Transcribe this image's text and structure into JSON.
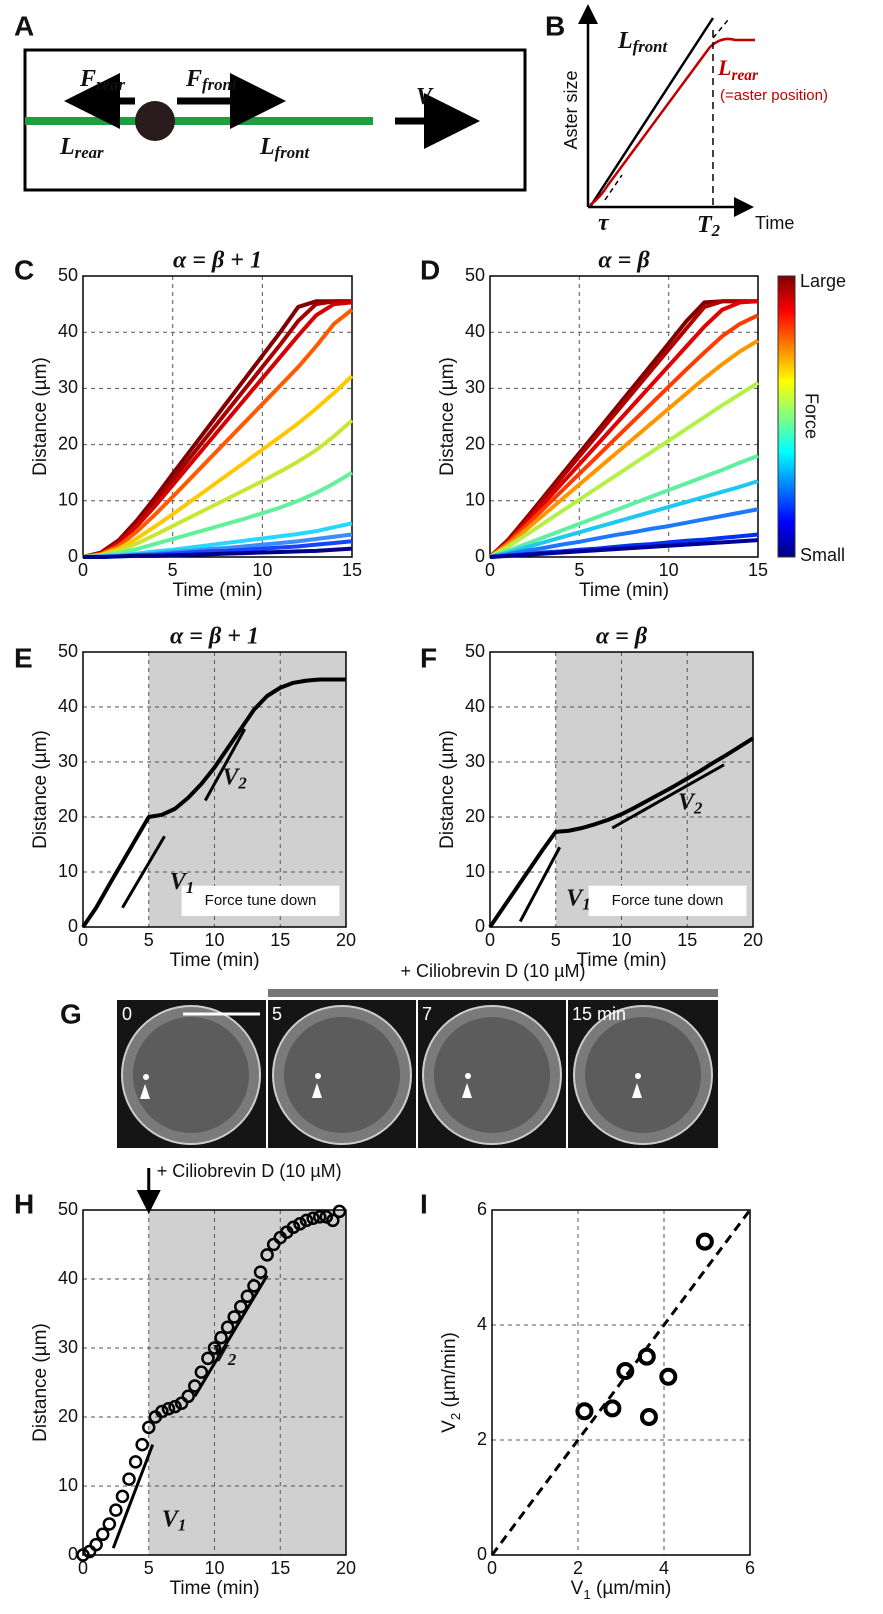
{
  "panel_labels": [
    "A",
    "B",
    "C",
    "D",
    "E",
    "F",
    "G",
    "H",
    "I"
  ],
  "panel_a": {
    "f_rear": [
      "F",
      "rear"
    ],
    "f_front": [
      "F",
      "front"
    ],
    "l_rear": [
      "L",
      "rear"
    ],
    "l_front": [
      "L",
      "front"
    ],
    "velocity": [
      "V"
    ]
  },
  "panel_b": {
    "ylabel": "Aster size",
    "xlabel": "Time",
    "tau": [
      "τ"
    ],
    "t2": [
      "T",
      "2"
    ],
    "l_front": [
      "L",
      "front"
    ],
    "l_rear": [
      "L",
      "rear"
    ],
    "note": "(=aster position)"
  },
  "panel_g": {
    "treatment": "+ Ciliobrevin D (10 µM)",
    "times": [
      "0",
      "5",
      "7",
      "15 min"
    ]
  },
  "chart_data": [
    {
      "type": "line",
      "title": "α = β + 1",
      "xlabel": "Time (min)",
      "ylabel": "Distance (µm)",
      "grid": true,
      "x": [
        0,
        1,
        2,
        3,
        4,
        5,
        6,
        7,
        8,
        9,
        10,
        11,
        12,
        13,
        14,
        15
      ],
      "xlim": [
        0,
        15
      ],
      "ylim": [
        0,
        50
      ],
      "xticks": [
        0,
        5,
        10,
        15
      ],
      "yticks": [
        0,
        10,
        20,
        30,
        40,
        50
      ],
      "series": [
        {
          "color": "#800000",
          "values": [
            0,
            0.8,
            3,
            6.5,
            10.5,
            14.8,
            19,
            23.2,
            27.4,
            31.6,
            35.8,
            40,
            44.5,
            45.5,
            45.5,
            45.5
          ]
        },
        {
          "color": "#a50000",
          "values": [
            0,
            0.7,
            2.7,
            6,
            9.8,
            13.8,
            17.8,
            21.8,
            25.8,
            29.8,
            33.8,
            37.8,
            42,
            45,
            45.5,
            45.5
          ]
        },
        {
          "color": "#d40000",
          "values": [
            0,
            0.6,
            2.5,
            5.5,
            9,
            12.8,
            16.6,
            20.4,
            24.2,
            28,
            31.8,
            35.6,
            39.4,
            43,
            45,
            45.3
          ]
        },
        {
          "color": "#ff5a00",
          "values": [
            0,
            0.5,
            2,
            4.5,
            7.5,
            10.7,
            14,
            17.3,
            20.6,
            23.9,
            27.2,
            30.5,
            33.8,
            37.5,
            41.5,
            44
          ]
        },
        {
          "color": "#ffc800",
          "values": [
            0,
            0.4,
            1.5,
            3.3,
            5.4,
            7.6,
            9.9,
            12.2,
            14.5,
            16.8,
            19.1,
            21.4,
            23.8,
            26.4,
            29.2,
            32.2
          ]
        },
        {
          "color": "#c8e632",
          "values": [
            0,
            0.3,
            1.1,
            2.4,
            3.9,
            5.5,
            7.1,
            8.7,
            10.3,
            11.9,
            13.5,
            15.2,
            17,
            19,
            21.5,
            24.3
          ]
        },
        {
          "color": "#64f09b",
          "values": [
            0,
            0.2,
            0.7,
            1.4,
            2.3,
            3.2,
            4.1,
            5,
            5.9,
            6.8,
            7.8,
            8.8,
            10,
            11.4,
            13.1,
            15
          ]
        },
        {
          "color": "#28d7ff",
          "values": [
            0,
            0.1,
            0.3,
            0.6,
            1,
            1.3,
            1.7,
            2.1,
            2.5,
            2.9,
            3.3,
            3.7,
            4.1,
            4.6,
            5.3,
            6
          ]
        },
        {
          "color": "#3c8cff",
          "values": [
            0,
            0.1,
            0.2,
            0.4,
            0.6,
            0.9,
            1.1,
            1.4,
            1.6,
            1.9,
            2.2,
            2.5,
            2.8,
            3.2,
            3.6,
            4
          ]
        },
        {
          "color": "#1446ff",
          "values": [
            0,
            0,
            0.1,
            0.3,
            0.4,
            0.6,
            0.8,
            1,
            1.1,
            1.3,
            1.5,
            1.7,
            1.9,
            2.2,
            2.5,
            2.8
          ]
        },
        {
          "color": "#00008c",
          "values": [
            0,
            0,
            0.1,
            0.2,
            0.2,
            0.3,
            0.4,
            0.5,
            0.6,
            0.7,
            0.8,
            0.9,
            1,
            1.1,
            1.3,
            1.5
          ]
        }
      ]
    },
    {
      "type": "line",
      "title": "α = β",
      "xlabel": "Time (min)",
      "ylabel": "Distance (µm)",
      "grid": true,
      "x": [
        0,
        1,
        2,
        3,
        4,
        5,
        6,
        7,
        8,
        9,
        10,
        11,
        12,
        13,
        14,
        15
      ],
      "xlim": [
        0,
        15
      ],
      "ylim": [
        0,
        50
      ],
      "xticks": [
        0,
        5,
        10,
        15
      ],
      "yticks": [
        0,
        10,
        20,
        30,
        40,
        50
      ],
      "colorbar": {
        "colors": [
          "#800000",
          "#ff0000",
          "#ff8000",
          "#ffff00",
          "#80ff80",
          "#00ffff",
          "#0080ff",
          "#0000ff",
          "#000080"
        ],
        "labels": [
          "Large",
          "Force",
          "Small"
        ]
      },
      "series": [
        {
          "color": "#800000",
          "values": [
            0,
            3,
            6.8,
            10.7,
            14.6,
            18.5,
            22.4,
            26.3,
            30.2,
            34.1,
            38,
            42,
            45.3,
            45.5,
            45.5,
            45.5
          ]
        },
        {
          "color": "#b00000",
          "values": [
            0,
            2.8,
            6.5,
            10.3,
            14.1,
            17.9,
            21.7,
            25.5,
            29.3,
            33.1,
            36.9,
            40.7,
            44.5,
            45.5,
            45.5,
            45.5
          ]
        },
        {
          "color": "#e00000",
          "values": [
            0,
            2.6,
            6,
            9.5,
            13,
            16.5,
            20,
            23.5,
            27,
            30.5,
            34,
            37.5,
            41,
            44,
            45.3,
            45.5
          ]
        },
        {
          "color": "#ff3c00",
          "values": [
            0,
            2.5,
            5.5,
            8.6,
            11.7,
            14.8,
            17.9,
            21,
            24.1,
            27.2,
            30.3,
            33.4,
            36.4,
            39.3,
            41.5,
            43
          ]
        },
        {
          "color": "#ff9600",
          "values": [
            0,
            2.2,
            4.8,
            7.5,
            10.2,
            12.9,
            15.6,
            18.3,
            21,
            23.7,
            26.4,
            29.1,
            31.8,
            34.3,
            36.6,
            38.5
          ]
        },
        {
          "color": "#b4f046",
          "values": [
            0,
            1.8,
            3.9,
            6,
            8.1,
            10.2,
            12.3,
            14.4,
            16.5,
            18.6,
            20.7,
            22.8,
            24.9,
            27,
            29,
            31
          ]
        },
        {
          "color": "#5ef0a0",
          "values": [
            0,
            1.1,
            2.3,
            3.5,
            4.7,
            5.9,
            7.1,
            8.3,
            9.5,
            10.7,
            11.9,
            13.1,
            14.3,
            15.5,
            16.8,
            18
          ]
        },
        {
          "color": "#1ec8f0",
          "values": [
            0,
            0.8,
            1.7,
            2.6,
            3.5,
            4.4,
            5.3,
            6.2,
            7.1,
            8,
            8.9,
            9.8,
            10.7,
            11.6,
            12.5,
            13.5
          ]
        },
        {
          "color": "#1e78ff",
          "values": [
            0,
            0.5,
            1.1,
            1.6,
            2.2,
            2.7,
            3.3,
            3.9,
            4.4,
            5,
            5.5,
            6.1,
            6.7,
            7.3,
            7.9,
            8.5
          ]
        },
        {
          "color": "#0032f0",
          "values": [
            0,
            0.25,
            0.5,
            0.8,
            1,
            1.3,
            1.5,
            1.8,
            2.1,
            2.3,
            2.6,
            2.9,
            3.1,
            3.4,
            3.7,
            4
          ]
        },
        {
          "color": "#000096",
          "values": [
            0,
            0.2,
            0.4,
            0.6,
            0.8,
            1,
            1.2,
            1.4,
            1.6,
            1.8,
            2,
            2.2,
            2.4,
            2.6,
            2.8,
            3
          ]
        }
      ]
    },
    {
      "type": "line",
      "title": "α = β + 1",
      "xlabel": "Time (min)",
      "ylabel": "Distance (µm)",
      "grid": true,
      "color": "#000000",
      "shade_start": 5,
      "annotations": [
        [
          "V",
          "1"
        ],
        [
          "V",
          "2"
        ]
      ],
      "box_label": "Force tune down",
      "x": [
        0,
        1,
        2,
        3,
        4,
        5,
        6,
        7,
        8,
        9,
        10,
        11,
        12,
        13,
        14,
        15,
        16,
        17,
        18,
        19,
        20
      ],
      "xlim": [
        0,
        20
      ],
      "ylim": [
        0,
        50
      ],
      "xticks": [
        0,
        5,
        10,
        15,
        20
      ],
      "yticks": [
        0,
        10,
        20,
        30,
        40,
        50
      ],
      "values": [
        0,
        3.5,
        7.7,
        11.8,
        15.9,
        20,
        20.4,
        21.5,
        23.5,
        26,
        29,
        32.5,
        36,
        39.5,
        42,
        43.5,
        44.4,
        44.8,
        45,
        45,
        45
      ]
    },
    {
      "type": "line",
      "title": "α = β",
      "xlabel": "Time (min)",
      "ylabel": "Distance (µm)",
      "grid": true,
      "color": "#000000",
      "shade_start": 5,
      "annotations": [
        [
          "V",
          "1"
        ],
        [
          "V",
          "2"
        ]
      ],
      "box_label": "Force tune down",
      "x": [
        0,
        1,
        2,
        3,
        4,
        5,
        6,
        7,
        8,
        9,
        10,
        11,
        12,
        13,
        14,
        15,
        16,
        17,
        18,
        19,
        20
      ],
      "xlim": [
        0,
        20
      ],
      "ylim": [
        0,
        50
      ],
      "xticks": [
        0,
        5,
        10,
        15,
        20
      ],
      "yticks": [
        0,
        10,
        20,
        30,
        40,
        50
      ],
      "values": [
        0,
        3.5,
        7,
        10.5,
        14,
        17.3,
        17.5,
        18,
        18.7,
        19.5,
        20.5,
        21.7,
        23,
        24.3,
        25.6,
        27,
        28.4,
        29.9,
        31.3,
        32.8,
        34.3
      ]
    },
    {
      "type": "scatter",
      "xlabel": "Time (min)",
      "ylabel": "Distance (µm)",
      "grid": true,
      "color": "#000000",
      "shade_start": 5,
      "arrow_x": 5,
      "arrow_label": "+ Ciliobrevin D (10 µM)",
      "annotations": [
        [
          "V",
          "1"
        ],
        [
          "V",
          "2"
        ]
      ],
      "x": [
        0,
        0.5,
        1,
        1.5,
        2,
        2.5,
        3,
        3.5,
        4,
        4.5,
        5,
        5.5,
        6,
        6.5,
        7,
        7.5,
        8,
        8.5,
        9,
        9.5,
        10,
        10.5,
        11,
        11.5,
        12,
        12.5,
        13,
        13.5,
        14,
        14.5,
        15,
        15.5,
        16,
        16.5,
        17,
        17.5,
        18,
        18.5,
        19,
        19.5
      ],
      "xlim": [
        0,
        20
      ],
      "ylim": [
        0,
        50
      ],
      "xticks": [
        0,
        5,
        10,
        15,
        20
      ],
      "yticks": [
        0,
        10,
        20,
        30,
        40,
        50
      ],
      "values": [
        0,
        0.5,
        1.5,
        3,
        4.5,
        6.5,
        8.5,
        11,
        13.5,
        16,
        18.5,
        20,
        20.8,
        21.2,
        21.5,
        22,
        23,
        24.5,
        26.5,
        28.5,
        30,
        31.5,
        33,
        34.5,
        36,
        37.5,
        39,
        41,
        43.5,
        45,
        46,
        46.8,
        47.5,
        48,
        48.5,
        48.8,
        49,
        49,
        48.5,
        49.8
      ]
    },
    {
      "type": "scatter",
      "xlabel": [
        "V",
        "1",
        " (µm/min)"
      ],
      "ylabel": [
        "V",
        "2",
        " (µm/min)"
      ],
      "grid": true,
      "color": "#000000",
      "identity_line": true,
      "x": [
        2.15,
        2.8,
        3.1,
        3.6,
        3.65,
        4.1,
        4.95
      ],
      "xlim": [
        0,
        6
      ],
      "ylim": [
        0,
        6
      ],
      "xticks": [
        0,
        2,
        4,
        6
      ],
      "yticks": [
        0,
        2,
        4,
        6
      ],
      "values": [
        2.5,
        2.55,
        3.2,
        3.45,
        2.4,
        3.1,
        5.45
      ]
    }
  ]
}
